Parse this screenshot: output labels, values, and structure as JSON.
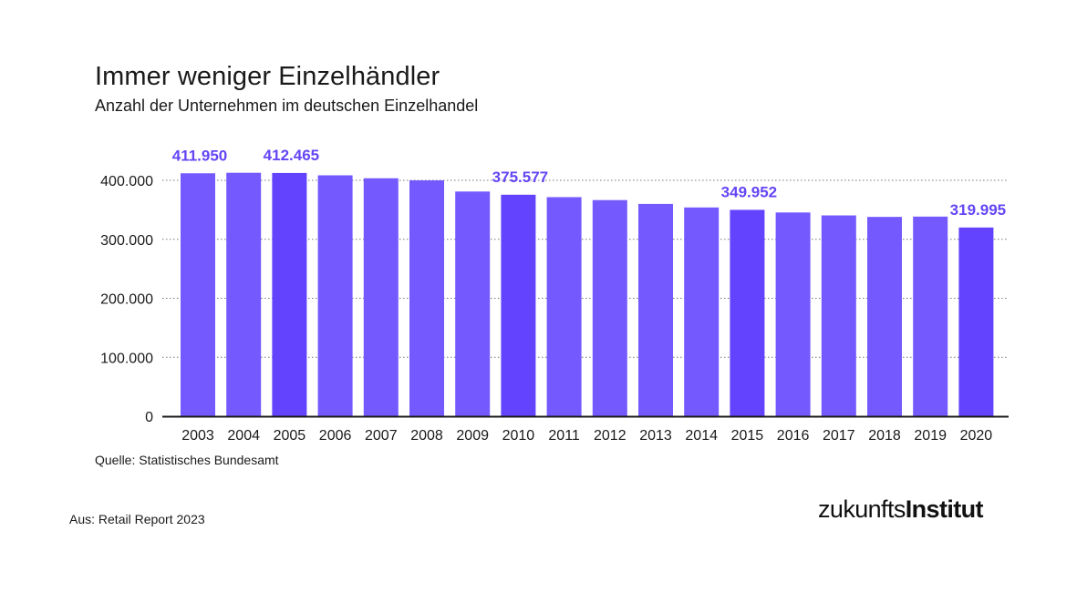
{
  "header": {
    "title": "Immer weniger Einzelhändler",
    "subtitle": "Anzahl der Unternehmen im deutschen Einzelhandel"
  },
  "footer": {
    "source": "Quelle: Statistisches Bundesamt",
    "from": "Aus: Retail Report 2023"
  },
  "logo": {
    "part1": "zukunfts",
    "part2": "Institut"
  },
  "colors": {
    "bar": "#7459ff",
    "bar_highlight": "#6443ff",
    "label": "#6545f5",
    "grid": "#777777",
    "axis": "#1a1a1a"
  },
  "chart_data": {
    "type": "bar",
    "title": "Immer weniger Einzelhändler",
    "subtitle": "Anzahl der Unternehmen im deutschen Einzelhandel",
    "categories": [
      "2003",
      "2004",
      "2005",
      "2006",
      "2007",
      "2008",
      "2009",
      "2010",
      "2011",
      "2012",
      "2013",
      "2014",
      "2015",
      "2016",
      "2017",
      "2018",
      "2019",
      "2020"
    ],
    "values": [
      411950,
      412800,
      412465,
      408500,
      403500,
      400000,
      381000,
      375577,
      371500,
      366500,
      360000,
      354000,
      349952,
      345500,
      340500,
      338000,
      338500,
      319995
    ],
    "highlighted": [
      false,
      false,
      true,
      false,
      false,
      false,
      false,
      true,
      false,
      false,
      false,
      false,
      true,
      false,
      false,
      false,
      false,
      true
    ],
    "data_labels": [
      {
        "category": "2003",
        "text": "411.950"
      },
      {
        "category": "2005",
        "text": "412.465"
      },
      {
        "category": "2010",
        "text": "375.577"
      },
      {
        "category": "2015",
        "text": "349.952"
      },
      {
        "category": "2020",
        "text": "319.995"
      }
    ],
    "yticks": [
      0,
      100000,
      200000,
      300000,
      400000
    ],
    "ytick_labels": [
      "0",
      "100.000",
      "200.000",
      "300.000",
      "400.000"
    ],
    "ylim": [
      0,
      400000
    ],
    "grid": true,
    "xlabel": "",
    "ylabel": ""
  }
}
